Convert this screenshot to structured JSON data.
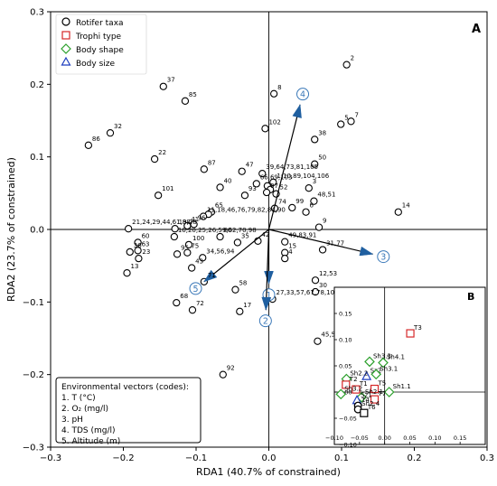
{
  "chart_data": {
    "type": "scatter",
    "panel_label": "A",
    "xlabel": "RDA1 (40.7% of constrained)",
    "ylabel": "RDA2 (23.7% of constrained)",
    "xlim": [
      -0.3,
      0.3
    ],
    "ylim": [
      -0.3,
      0.3
    ],
    "xticks": [
      -0.3,
      -0.2,
      -0.1,
      0.0,
      0.1,
      0.2,
      0.3
    ],
    "yticks": [
      -0.3,
      -0.2,
      -0.1,
      0.0,
      0.1,
      0.2,
      0.3
    ],
    "xtick_labels": [
      "−0.3",
      "−0.2",
      "−0.1",
      "0.0",
      "0.1",
      "0.2",
      "0.3"
    ],
    "ytick_labels": [
      "−0.3",
      "−0.2",
      "−0.1",
      "0.0",
      "0.1",
      "0.2",
      "0.3"
    ],
    "legend": [
      {
        "label": "Rotifer taxa",
        "marker": "circle",
        "color": "#000000"
      },
      {
        "label": "Trophi type",
        "marker": "square",
        "color": "#d62728"
      },
      {
        "label": "Body shape",
        "marker": "diamond",
        "color": "#2ca02c"
      },
      {
        "label": "Body size",
        "marker": "triangle",
        "color": "#1f3fbf"
      }
    ],
    "taxa": [
      {
        "label": "2",
        "x": 0.107,
        "y": 0.227
      },
      {
        "label": "37",
        "x": -0.145,
        "y": 0.197
      },
      {
        "label": "85",
        "x": -0.115,
        "y": 0.177
      },
      {
        "label": "8",
        "x": 0.007,
        "y": 0.187
      },
      {
        "label": "7",
        "x": 0.113,
        "y": 0.149
      },
      {
        "label": "5",
        "x": 0.099,
        "y": 0.145
      },
      {
        "label": "32",
        "x": -0.218,
        "y": 0.133
      },
      {
        "label": "86",
        "x": -0.248,
        "y": 0.116
      },
      {
        "label": "102",
        "x": -0.005,
        "y": 0.139
      },
      {
        "label": "38",
        "x": 0.063,
        "y": 0.124
      },
      {
        "label": "22",
        "x": -0.157,
        "y": 0.097
      },
      {
        "label": "50",
        "x": 0.063,
        "y": 0.09
      },
      {
        "label": "87",
        "x": -0.089,
        "y": 0.083
      },
      {
        "label": "47",
        "x": -0.037,
        "y": 0.08
      },
      {
        "label": "39,64,73,81,105",
        "x": -0.009,
        "y": 0.077
      },
      {
        "label": "1,10,89,104,106",
        "x": 0.006,
        "y": 0.065
      },
      {
        "label": "66,69,103",
        "x": -0.017,
        "y": 0.063
      },
      {
        "label": "40",
        "x": -0.067,
        "y": 0.058
      },
      {
        "label": "",
        "x": -0.002,
        "y": 0.06
      },
      {
        "label": "",
        "x": 0.002,
        "y": 0.055
      },
      {
        "label": "97",
        "x": -0.003,
        "y": 0.051
      },
      {
        "label": "52",
        "x": 0.01,
        "y": 0.049
      },
      {
        "label": "3",
        "x": 0.055,
        "y": 0.057
      },
      {
        "label": "93",
        "x": -0.033,
        "y": 0.047
      },
      {
        "label": "101",
        "x": -0.152,
        "y": 0.047
      },
      {
        "label": "48,51",
        "x": 0.062,
        "y": 0.039
      },
      {
        "label": "99",
        "x": 0.032,
        "y": 0.03
      },
      {
        "label": "74",
        "x": 0.008,
        "y": 0.029
      },
      {
        "label": "6",
        "x": 0.051,
        "y": 0.024
      },
      {
        "label": "14",
        "x": 0.178,
        "y": 0.024
      },
      {
        "label": "65",
        "x": -0.079,
        "y": 0.024
      },
      {
        "label": "",
        "x": -0.083,
        "y": 0.021
      },
      {
        "label": "11,18,46,76,79,82,84,90",
        "x": -0.09,
        "y": 0.018
      },
      {
        "label": "96",
        "x": -0.103,
        "y": 0.007
      },
      {
        "label": "41",
        "x": -0.112,
        "y": 0.005
      },
      {
        "label": "19,28",
        "x": -0.129,
        "y": 0.001
      },
      {
        "label": "21,24,29,44,61,88",
        "x": -0.193,
        "y": 0.001
      },
      {
        "label": "9",
        "x": 0.069,
        "y": 0.003
      },
      {
        "label": "16,20,25,26,59,62,70,98",
        "x": -0.13,
        "y": -0.01
      },
      {
        "label": "80",
        "x": -0.067,
        "y": -0.01
      },
      {
        "label": "60",
        "x": -0.18,
        "y": -0.018
      },
      {
        "label": "100",
        "x": -0.11,
        "y": -0.021
      },
      {
        "label": "35",
        "x": -0.043,
        "y": -0.018
      },
      {
        "label": "42",
        "x": -0.015,
        "y": -0.016
      },
      {
        "label": "49,83,91",
        "x": 0.022,
        "y": -0.017
      },
      {
        "label": "31,77",
        "x": 0.074,
        "y": -0.028
      },
      {
        "label": "15",
        "x": 0.022,
        "y": -0.032
      },
      {
        "label": "4",
        "x": 0.022,
        "y": -0.04
      },
      {
        "label": "63",
        "x": -0.18,
        "y": -0.029
      },
      {
        "label": "95",
        "x": -0.126,
        "y": -0.034
      },
      {
        "label": "36",
        "x": -0.191,
        "y": -0.031
      },
      {
        "label": "75",
        "x": -0.112,
        "y": -0.032
      },
      {
        "label": "23",
        "x": -0.179,
        "y": -0.04
      },
      {
        "label": "34,56,94",
        "x": -0.091,
        "y": -0.039
      },
      {
        "label": "43",
        "x": -0.106,
        "y": -0.053
      },
      {
        "label": "13",
        "x": -0.195,
        "y": -0.06
      },
      {
        "label": "71",
        "x": -0.089,
        "y": -0.072
      },
      {
        "label": "12,53",
        "x": 0.064,
        "y": -0.07
      },
      {
        "label": "58",
        "x": -0.046,
        "y": -0.083
      },
      {
        "label": "27,33,57,67,78,107",
        "x": 0.005,
        "y": -0.096
      },
      {
        "label": "30",
        "x": 0.064,
        "y": -0.086
      },
      {
        "label": "68",
        "x": -0.127,
        "y": -0.101
      },
      {
        "label": "72",
        "x": -0.105,
        "y": -0.111
      },
      {
        "label": "17",
        "x": -0.04,
        "y": -0.113
      },
      {
        "label": "45,54",
        "x": 0.067,
        "y": -0.154
      },
      {
        "label": "92",
        "x": -0.063,
        "y": -0.2
      }
    ],
    "vectors": [
      {
        "code": "1",
        "x": 0.0,
        "y": -0.075
      },
      {
        "code": "2",
        "x": -0.004,
        "y": -0.111
      },
      {
        "code": "3",
        "x": 0.143,
        "y": -0.034
      },
      {
        "code": "4",
        "x": 0.043,
        "y": 0.172
      },
      {
        "code": "5",
        "x": -0.089,
        "y": -0.072
      }
    ],
    "vector_box": {
      "title": "Environmental vectors (codes):",
      "items": [
        "1. T (°C)",
        "2. O₂ (mg/l)",
        "3. pH",
        "4. TDS (mg/l)",
        "5. Altitude (m)"
      ]
    },
    "inset": {
      "panel_label": "B",
      "xlim": [
        -0.1,
        0.2
      ],
      "ylim": [
        -0.1,
        0.2
      ],
      "xticks": [
        -0.1,
        -0.05,
        0.0,
        0.05,
        0.1,
        0.15
      ],
      "yticks": [
        -0.1,
        -0.05,
        0.0,
        0.05,
        0.1,
        0.15
      ],
      "xtick_labels": [
        "−0.10",
        "−0.05",
        "0.00",
        "0.05",
        "0.10",
        "0.15"
      ],
      "ytick_labels": [
        "−0.10",
        "−0.05",
        "0.00",
        "0.05",
        "0.10",
        "0.15"
      ],
      "points": [
        {
          "label": "T3",
          "group": "trophi",
          "x": 0.051,
          "y": 0.112
        },
        {
          "label": "Sh3.3",
          "group": "shape",
          "x": -0.03,
          "y": 0.058
        },
        {
          "label": "Sh4.1",
          "group": "shape",
          "x": -0.003,
          "y": 0.056
        },
        {
          "label": "Sz2",
          "group": "size",
          "x": -0.036,
          "y": 0.03
        },
        {
          "label": "Sh3.1",
          "group": "shape",
          "x": -0.017,
          "y": 0.034
        },
        {
          "label": "Sh2.2",
          "group": "shape",
          "x": -0.076,
          "y": 0.025
        },
        {
          "label": "T2",
          "group": "trophi",
          "x": -0.077,
          "y": 0.014
        },
        {
          "label": "T5",
          "group": "trophi",
          "x": -0.02,
          "y": 0.006
        },
        {
          "label": "T1",
          "group": "trophi",
          "x": -0.057,
          "y": 0.005
        },
        {
          "label": "Sh3.2",
          "group": "shape",
          "x": -0.087,
          "y": -0.004
        },
        {
          "label": "Sh1.1",
          "group": "shape",
          "x": 0.009,
          "y": 0.0
        },
        {
          "label": "Sh2.1",
          "group": "shape",
          "x": -0.046,
          "y": -0.01
        },
        {
          "label": "T7",
          "group": "trophi",
          "x": -0.02,
          "y": -0.014
        },
        {
          "label": "Sz1",
          "group": "size",
          "x": -0.055,
          "y": -0.016
        },
        {
          "label": "T4",
          "group": "taxa",
          "x": -0.053,
          "y": -0.026
        },
        {
          "label": "Sh2.4",
          "group": "taxa",
          "x": -0.053,
          "y": -0.033
        },
        {
          "label": "T6",
          "group": "taxa-square",
          "x": -0.041,
          "y": -0.04
        }
      ]
    }
  }
}
